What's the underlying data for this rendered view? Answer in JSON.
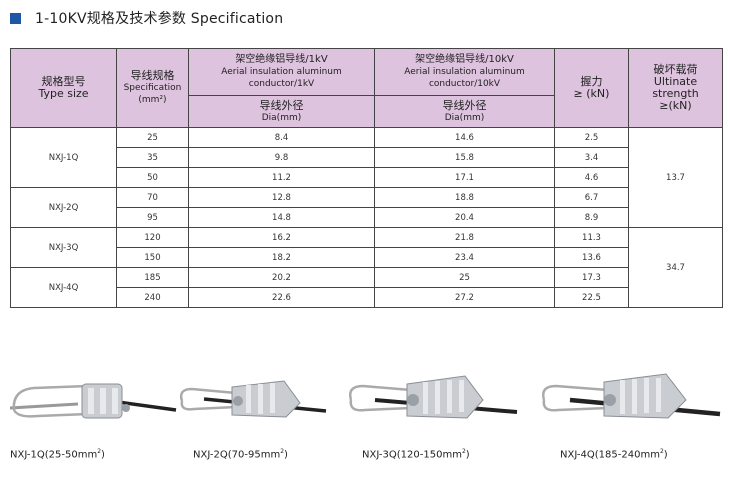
{
  "header": {
    "title": "1-10KV规格及技术参数 Specification",
    "accent_color": "#1f57a8"
  },
  "table": {
    "headers": {
      "type_cn": "规格型号",
      "type_en": "Type size",
      "spec_cn": "导线规格",
      "spec_en": "Specification",
      "spec_unit": "(mm²)",
      "kv1_cn": "架空绝缘铝导线/1kV",
      "kv1_en1": "Aerial insulation aluminum",
      "kv1_en2": "conductor/1kV",
      "kv10_cn": "架空绝缘铝导线/10kV",
      "kv10_en1": "Aerial insulation aluminum",
      "kv10_en2": "conductor/10kV",
      "dia_cn": "导线外径",
      "dia_en": "Dia(mm)",
      "grip_cn": "握力",
      "grip_en": "≥ (kN)",
      "break_cn": "破坏载荷",
      "break_en1": "Ultinate",
      "break_en2": "strength",
      "break_en3": "≥(kN)"
    },
    "models": [
      "NXJ-1Q",
      "NXJ-2Q",
      "NXJ-3Q",
      "NXJ-4Q"
    ],
    "rows": [
      {
        "spec": "25",
        "dia1": "8.4",
        "dia10": "14.6",
        "grip": "2.5"
      },
      {
        "spec": "35",
        "dia1": "9.8",
        "dia10": "15.8",
        "grip": "3.4"
      },
      {
        "spec": "50",
        "dia1": "11.2",
        "dia10": "17.1",
        "grip": "4.6"
      },
      {
        "spec": "70",
        "dia1": "12.8",
        "dia10": "18.8",
        "grip": "6.7"
      },
      {
        "spec": "95",
        "dia1": "14.8",
        "dia10": "20.4",
        "grip": "8.9"
      },
      {
        "spec": "120",
        "dia1": "16.2",
        "dia10": "21.8",
        "grip": "11.3"
      },
      {
        "spec": "150",
        "dia1": "18.2",
        "dia10": "23.4",
        "grip": "13.6"
      },
      {
        "spec": "185",
        "dia1": "20.2",
        "dia10": "25",
        "grip": "17.3"
      },
      {
        "spec": "240",
        "dia1": "22.6",
        "dia10": "27.2",
        "grip": "22.5"
      }
    ],
    "break_values": [
      "13.7",
      "34.7"
    ],
    "header_bg": "#dec3de"
  },
  "products": [
    {
      "caption": "NXJ-1Q(25-50mm",
      "sup": "2",
      "close": ")"
    },
    {
      "caption": "NXJ-2Q(70-95mm",
      "sup": "2",
      "close": ")"
    },
    {
      "caption": "NXJ-3Q(120-150mm",
      "sup": "2",
      "close": ")"
    },
    {
      "caption": "NXJ-4Q(185-240mm",
      "sup": "2",
      "close": ")"
    }
  ]
}
